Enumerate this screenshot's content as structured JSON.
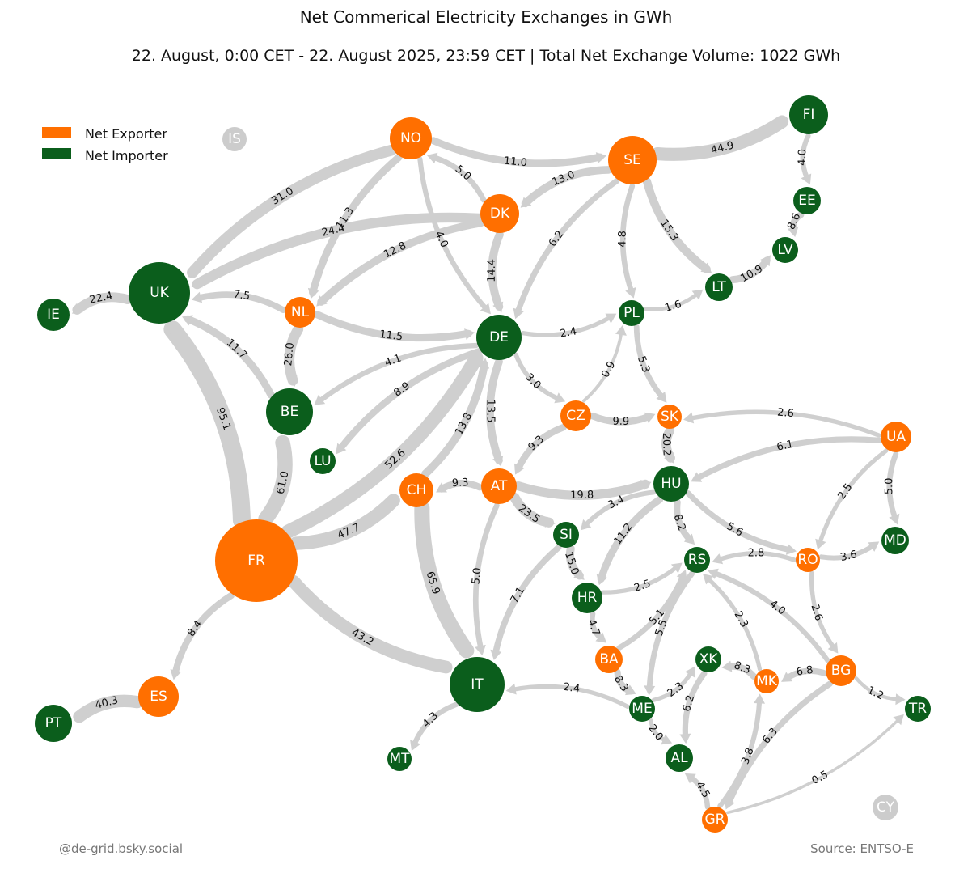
{
  "title": "Net Commerical Electricity Exchanges in GWh",
  "subtitle": "22. August, 0:00 CET - 22. August 2025, 23:59 CET | Total Net Exchange Volume: 1022 GWh",
  "legend": {
    "position": "top-left",
    "items": [
      {
        "label": "Net Exporter",
        "color": "#ff6f00"
      },
      {
        "label": "Net Importer",
        "color": "#0b5e1c"
      }
    ]
  },
  "footer_left": "@de-grid.bsky.social",
  "footer_right": "Source: ENTSO-E",
  "colors": {
    "exporter": "#ff6f00",
    "importer": "#0b5e1c",
    "neutral": "#cccccc",
    "edge": "#cfcfcf"
  },
  "nodes": [
    {
      "id": "IS",
      "role": "neutral"
    },
    {
      "id": "NO",
      "role": "exporter"
    },
    {
      "id": "SE",
      "role": "exporter"
    },
    {
      "id": "FI",
      "role": "importer"
    },
    {
      "id": "DK",
      "role": "exporter"
    },
    {
      "id": "EE",
      "role": "importer"
    },
    {
      "id": "LV",
      "role": "importer"
    },
    {
      "id": "LT",
      "role": "importer"
    },
    {
      "id": "UK",
      "role": "importer"
    },
    {
      "id": "IE",
      "role": "importer"
    },
    {
      "id": "NL",
      "role": "exporter"
    },
    {
      "id": "DE",
      "role": "importer"
    },
    {
      "id": "PL",
      "role": "importer"
    },
    {
      "id": "BE",
      "role": "importer"
    },
    {
      "id": "LU",
      "role": "importer"
    },
    {
      "id": "CZ",
      "role": "exporter"
    },
    {
      "id": "SK",
      "role": "exporter"
    },
    {
      "id": "UA",
      "role": "exporter"
    },
    {
      "id": "CH",
      "role": "exporter"
    },
    {
      "id": "AT",
      "role": "exporter"
    },
    {
      "id": "HU",
      "role": "importer"
    },
    {
      "id": "SI",
      "role": "importer"
    },
    {
      "id": "FR",
      "role": "exporter"
    },
    {
      "id": "RS",
      "role": "importer"
    },
    {
      "id": "RO",
      "role": "exporter"
    },
    {
      "id": "MD",
      "role": "importer"
    },
    {
      "id": "HR",
      "role": "importer"
    },
    {
      "id": "BA",
      "role": "exporter"
    },
    {
      "id": "XK",
      "role": "importer"
    },
    {
      "id": "MK",
      "role": "exporter"
    },
    {
      "id": "BG",
      "role": "exporter"
    },
    {
      "id": "IT",
      "role": "importer"
    },
    {
      "id": "ME",
      "role": "importer"
    },
    {
      "id": "TR",
      "role": "importer"
    },
    {
      "id": "ES",
      "role": "exporter"
    },
    {
      "id": "PT",
      "role": "importer"
    },
    {
      "id": "AL",
      "role": "importer"
    },
    {
      "id": "MT",
      "role": "importer"
    },
    {
      "id": "GR",
      "role": "exporter"
    },
    {
      "id": "CY",
      "role": "neutral"
    }
  ],
  "flows": [
    {
      "from": "NO",
      "to": "SE",
      "label": "11.0",
      "value": 11.0
    },
    {
      "from": "SE",
      "to": "FI",
      "label": "44.9",
      "value": 44.9
    },
    {
      "from": "DK",
      "to": "NO",
      "label": "5.0",
      "value": 5.0
    },
    {
      "from": "SE",
      "to": "DK",
      "label": "13.0",
      "value": 13.0
    },
    {
      "from": "NO",
      "to": "UK",
      "label": "31.0",
      "value": 31.0
    },
    {
      "from": "NO",
      "to": "NL",
      "label": "11.3",
      "value": 11.3
    },
    {
      "from": "NO",
      "to": "DE",
      "label": "4.0",
      "value": 4.0
    },
    {
      "from": "DK",
      "to": "UK",
      "label": "24.4",
      "value": 24.4
    },
    {
      "from": "DK",
      "to": "NL",
      "label": "12.8",
      "value": 12.8
    },
    {
      "from": "DK",
      "to": "DE",
      "label": "14.4",
      "value": 14.4
    },
    {
      "from": "SE",
      "to": "DE",
      "label": "6.2",
      "value": 6.2
    },
    {
      "from": "SE",
      "to": "PL",
      "label": "4.8",
      "value": 4.8
    },
    {
      "from": "SE",
      "to": "LT",
      "label": "15.3",
      "value": 15.3
    },
    {
      "from": "FI",
      "to": "EE",
      "label": "4.0",
      "value": 4.0
    },
    {
      "from": "EE",
      "to": "LV",
      "label": "8.6",
      "value": 8.6
    },
    {
      "from": "LT",
      "to": "LV",
      "label": "10.9",
      "value": 10.9
    },
    {
      "from": "PL",
      "to": "LT",
      "label": "1.6",
      "value": 1.6
    },
    {
      "from": "UK",
      "to": "IE",
      "label": "22.4",
      "value": 22.4
    },
    {
      "from": "NL",
      "to": "UK",
      "label": "7.5",
      "value": 7.5
    },
    {
      "from": "NL",
      "to": "DE",
      "label": "11.5",
      "value": 11.5
    },
    {
      "from": "NL",
      "to": "BE",
      "label": "26.0",
      "value": 26.0
    },
    {
      "from": "BE",
      "to": "UK",
      "label": "11.7",
      "value": 11.7
    },
    {
      "from": "DE",
      "to": "PL",
      "label": "2.4",
      "value": 2.4
    },
    {
      "from": "DE",
      "to": "BE",
      "label": "4.1",
      "value": 4.1
    },
    {
      "from": "DE",
      "to": "LU",
      "label": "8.9",
      "value": 8.9
    },
    {
      "from": "DE",
      "to": "CZ",
      "label": "3.0",
      "value": 3.0
    },
    {
      "from": "DE",
      "to": "AT",
      "label": "13.5",
      "value": 13.5
    },
    {
      "from": "CH",
      "to": "DE",
      "label": "13.8",
      "value": 13.8
    },
    {
      "from": "FR",
      "to": "DE",
      "label": "52.6",
      "value": 52.6
    },
    {
      "from": "CZ",
      "to": "PL",
      "label": "0.9",
      "value": 0.9
    },
    {
      "from": "PL",
      "to": "SK",
      "label": "5.3",
      "value": 5.3
    },
    {
      "from": "CZ",
      "to": "SK",
      "label": "9.9",
      "value": 9.9
    },
    {
      "from": "CZ",
      "to": "AT",
      "label": "9.3",
      "value": 9.3
    },
    {
      "from": "UA",
      "to": "SK",
      "label": "2.6",
      "value": 2.6
    },
    {
      "from": "UA",
      "to": "HU",
      "label": "6.1",
      "value": 6.1
    },
    {
      "from": "UA",
      "to": "RO",
      "label": "2.5",
      "value": 2.5
    },
    {
      "from": "UA",
      "to": "MD",
      "label": "5.0",
      "value": 5.0
    },
    {
      "from": "SK",
      "to": "HU",
      "label": "20.2",
      "value": 20.2
    },
    {
      "from": "AT",
      "to": "CH",
      "label": "9.3",
      "value": 9.3
    },
    {
      "from": "AT",
      "to": "HU",
      "label": "19.8",
      "value": 19.8
    },
    {
      "from": "AT",
      "to": "SI",
      "label": "23.5",
      "value": 23.5
    },
    {
      "from": "AT",
      "to": "IT",
      "label": "5.0",
      "value": 5.0
    },
    {
      "from": "HU",
      "to": "SI",
      "label": "3.4",
      "value": 3.4
    },
    {
      "from": "HU",
      "to": "HR",
      "label": "11.2",
      "value": 11.2
    },
    {
      "from": "HU",
      "to": "RS",
      "label": "8.2",
      "value": 8.2
    },
    {
      "from": "HU",
      "to": "RO",
      "label": "5.6",
      "value": 5.6
    },
    {
      "from": "FR",
      "to": "UK",
      "label": "95.1",
      "value": 95.1
    },
    {
      "from": "FR",
      "to": "BE",
      "label": "61.0",
      "value": 61.0
    },
    {
      "from": "FR",
      "to": "CH",
      "label": "47.7",
      "value": 47.7
    },
    {
      "from": "FR",
      "to": "IT",
      "label": "43.2",
      "value": 43.2
    },
    {
      "from": "FR",
      "to": "ES",
      "label": "8.4",
      "value": 8.4
    },
    {
      "from": "CH",
      "to": "IT",
      "label": "65.9",
      "value": 65.9
    },
    {
      "from": "SI",
      "to": "HR",
      "label": "15.0",
      "value": 15.0
    },
    {
      "from": "SI",
      "to": "IT",
      "label": "7.1",
      "value": 7.1
    },
    {
      "from": "RO",
      "to": "RS",
      "label": "2.8",
      "value": 2.8
    },
    {
      "from": "RO",
      "to": "MD",
      "label": "3.6",
      "value": 3.6
    },
    {
      "from": "RO",
      "to": "BG",
      "label": "2.6",
      "value": 2.6
    },
    {
      "from": "HR",
      "to": "RS",
      "label": "2.5",
      "value": 2.5
    },
    {
      "from": "HR",
      "to": "BA",
      "label": "4.7",
      "value": 4.7
    },
    {
      "from": "BA",
      "to": "RS",
      "label": "5.1",
      "value": 5.1
    },
    {
      "from": "RS",
      "to": "ME",
      "label": "5.5",
      "value": 5.5
    },
    {
      "from": "MK",
      "to": "RS",
      "label": "2.3",
      "value": 2.3
    },
    {
      "from": "BG",
      "to": "RS",
      "label": "4.0",
      "value": 4.0
    },
    {
      "from": "BA",
      "to": "ME",
      "label": "8.3",
      "value": 8.3
    },
    {
      "from": "MK",
      "to": "XK",
      "label": "8.3",
      "value": 8.3
    },
    {
      "from": "BG",
      "to": "MK",
      "label": "6.8",
      "value": 6.8
    },
    {
      "from": "BG",
      "to": "TR",
      "label": "1.2",
      "value": 1.2
    },
    {
      "from": "ME",
      "to": "XK",
      "label": "2.3",
      "value": 2.3
    },
    {
      "from": "XK",
      "to": "AL",
      "label": "6.2",
      "value": 6.2
    },
    {
      "from": "ME",
      "to": "IT",
      "label": "2.4",
      "value": 2.4
    },
    {
      "from": "ME",
      "to": "AL",
      "label": "2.0",
      "value": 2.0
    },
    {
      "from": "BG",
      "to": "GR",
      "label": "6.3",
      "value": 6.3
    },
    {
      "from": "GR",
      "to": "MK",
      "label": "3.8",
      "value": 3.8
    },
    {
      "from": "GR",
      "to": "TR",
      "label": "0.5",
      "value": 0.5
    },
    {
      "from": "GR",
      "to": "AL",
      "label": "4.5",
      "value": 4.5
    },
    {
      "from": "IT",
      "to": "MT",
      "label": "4.3",
      "value": 4.3
    },
    {
      "from": "ES",
      "to": "PT",
      "label": "40.3",
      "value": 40.3
    }
  ]
}
